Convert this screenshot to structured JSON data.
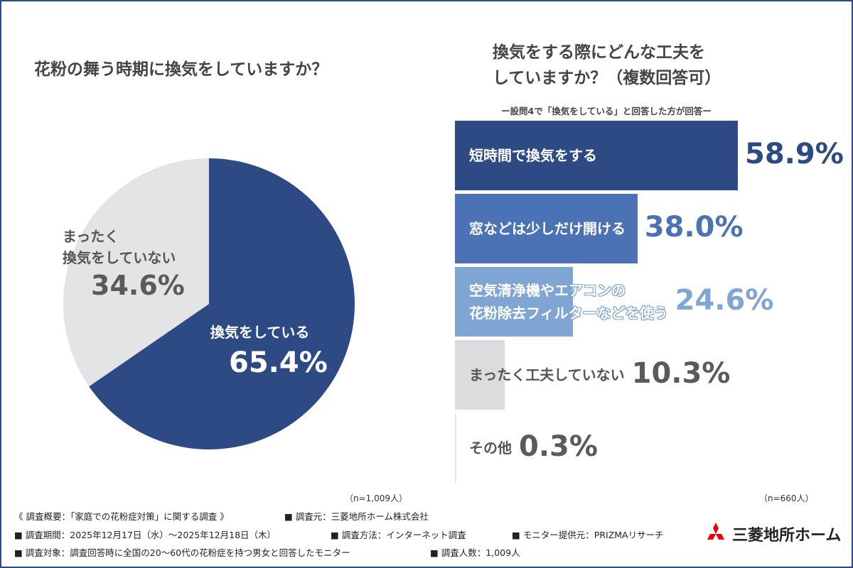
{
  "colors": {
    "navy": "#2d4a85",
    "blue": "#4a72b5",
    "light_blue": "#7fa6d3",
    "gray": "#dcdcde",
    "light_gray": "#e4e4e6",
    "text_gray": "#5a5a5a",
    "logo_red": "#e60012"
  },
  "chart_data": [
    {
      "type": "pie",
      "title": "花粉の舞う時期に換気をしていますか？",
      "slices": [
        {
          "label": "換気をしている",
          "value": 65.4,
          "value_label": "65.4%",
          "color": "#2d4a85"
        },
        {
          "label": "まったく\n換気をしていない",
          "value": 34.6,
          "value_label": "34.6%",
          "color": "#e4e4e6"
        }
      ],
      "note": "（n=1,009人）"
    },
    {
      "type": "bar",
      "orientation": "horizontal",
      "title": "換気をする際にどんな工夫を\nしていますか？（複数回答可）",
      "subtitle": "ー設問4で「換気をしている」と回答した方が回答ー",
      "categories": [
        "短時間で換気をする",
        "窓などは少しだけ開ける",
        "空気清浄機やエアコンの\n花粉除去フィルターなどを使う",
        "まったく工夫していない",
        "その他"
      ],
      "values": [
        58.9,
        38.0,
        24.6,
        10.3,
        0.3
      ],
      "value_labels": [
        "58.9%",
        "38.0%",
        "24.6%",
        "10.3%",
        "0.3%"
      ],
      "bar_colors": [
        "#2d4a85",
        "#4a72b5",
        "#7fa6d3",
        "#dcdcde",
        "#e6e6e8"
      ],
      "value_colors": [
        "#2d4a85",
        "#4a72b5",
        "#7fa6d3",
        "#5a5a5a",
        "#5a5a5a"
      ],
      "note": "（n=660人）"
    }
  ],
  "footer": {
    "overview": "《 調査概要：「家庭での花粉症対策」に関する調査 》",
    "source": "■ 調査元：三菱地所ホーム株式会社",
    "period": "■ 調査期間：2025年12月17日（水）～2025年12月18日（木）",
    "method": "■ 調査方法：インターネット調査",
    "monitor": "■ モニター提供元：PRIZMAリサーチ",
    "target": "■ 調査対象：調査回答時に全国の20～60代の花粉症を持つ男女と回答したモニター",
    "count": "■ 調査人数：1,009人"
  },
  "logo": {
    "text": "三菱地所ホーム",
    "icon": "three-diamonds-icon"
  }
}
